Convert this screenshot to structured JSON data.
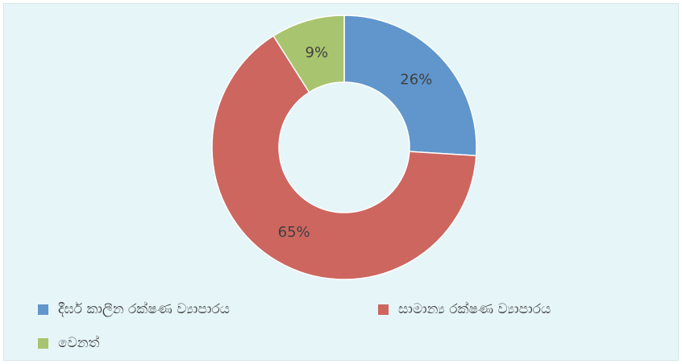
{
  "chart_data": {
    "type": "pie",
    "variant": "donut",
    "categories": [
      "දීර්ඝ කාලීන රක්ෂණ ව්‍යාපාරය",
      "සාමාන්‍ය රක්ෂණ ව්‍යාපාරය",
      "වෙනත්"
    ],
    "values": [
      26,
      65,
      9
    ],
    "data_labels": [
      "26%",
      "65%",
      "9%"
    ],
    "colors": [
      "#6096cc",
      "#cd665f",
      "#a9c46e"
    ],
    "legend_position": "bottom",
    "title": ""
  }
}
